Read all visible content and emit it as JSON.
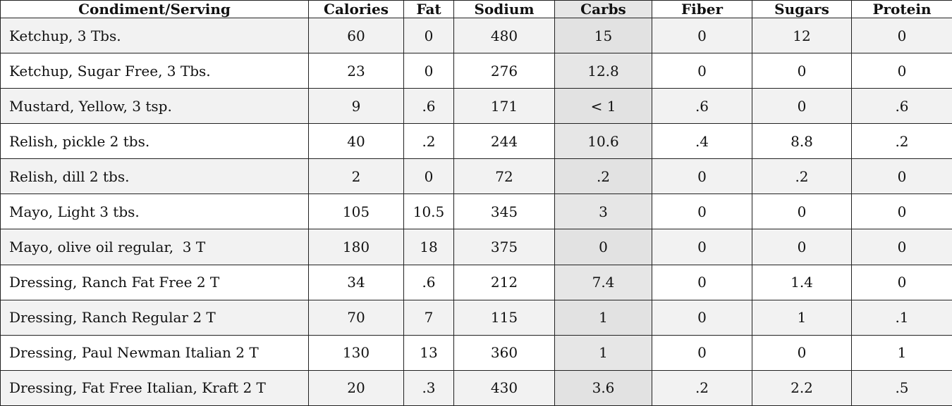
{
  "table": {
    "header": [
      "Condiment/Serving",
      "Calories",
      "Fat",
      "Sodium",
      "Carbs",
      "Fiber",
      "Sugars",
      "Protein"
    ],
    "rows": [
      [
        "Ketchup, 3 Tbs.",
        "60",
        "0",
        "480",
        "15",
        "0",
        "12",
        "0"
      ],
      [
        "Ketchup, Sugar Free, 3 Tbs.",
        "23",
        "0",
        "276",
        "12.8",
        "0",
        "0",
        "0"
      ],
      [
        "Mustard, Yellow, 3 tsp.",
        "9",
        ".6",
        "171",
        "< 1",
        ".6",
        "0",
        ".6"
      ],
      [
        "Relish, pickle 2 tbs.",
        "40",
        ".2",
        "244",
        "10.6",
        ".4",
        "8.8",
        ".2"
      ],
      [
        "Relish, dill 2 tbs.",
        "2",
        "0",
        "72",
        ".2",
        "0",
        ".2",
        "0"
      ],
      [
        "Mayo, Light 3 tbs.",
        "105",
        "10.5",
        "345",
        "3",
        "0",
        "0",
        "0"
      ],
      [
        "Mayo, olive oil regular,  3 T",
        "180",
        "18",
        "375",
        "0",
        "0",
        "0",
        "0"
      ],
      [
        "Dressing, Ranch Fat Free 2 T",
        "34",
        ".6",
        "212",
        "7.4",
        "0",
        "1.4",
        "0"
      ],
      [
        "Dressing, Ranch Regular 2 T",
        "70",
        "7",
        "115",
        "1",
        "0",
        "1",
        ".1"
      ],
      [
        "Dressing, Paul Newman Italian 2 T",
        "130",
        "13",
        "360",
        "1",
        "0",
        "0",
        "1"
      ],
      [
        "Dressing, Fat Free Italian, Kraft 2 T",
        "20",
        ".3",
        "430",
        "3.6",
        ".2",
        "2.2",
        ".5"
      ]
    ]
  }
}
